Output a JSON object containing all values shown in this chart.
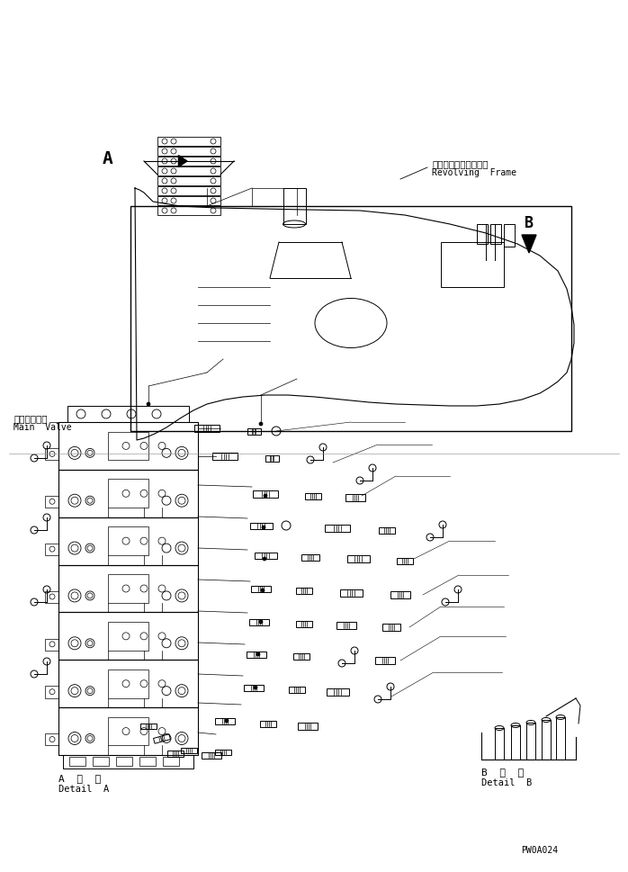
{
  "title": "",
  "bg_color": "#ffffff",
  "line_color": "#000000",
  "fig_width": 6.98,
  "fig_height": 9.7,
  "dpi": 100,
  "labels": {
    "revolving_frame_jp": "レボルビングフレーム",
    "revolving_frame_en": "Revolving  Frame",
    "main_valve_jp": "メインバルブ",
    "main_valve_en": "Main  Valve",
    "detail_a_jp": "A  詳  細",
    "detail_a_en": "Detail  A",
    "detail_b_jp": "B  詳  細",
    "detail_b_en": "Detail  B",
    "label_a": "A",
    "label_b": "B",
    "part_number": "PW0A024"
  }
}
